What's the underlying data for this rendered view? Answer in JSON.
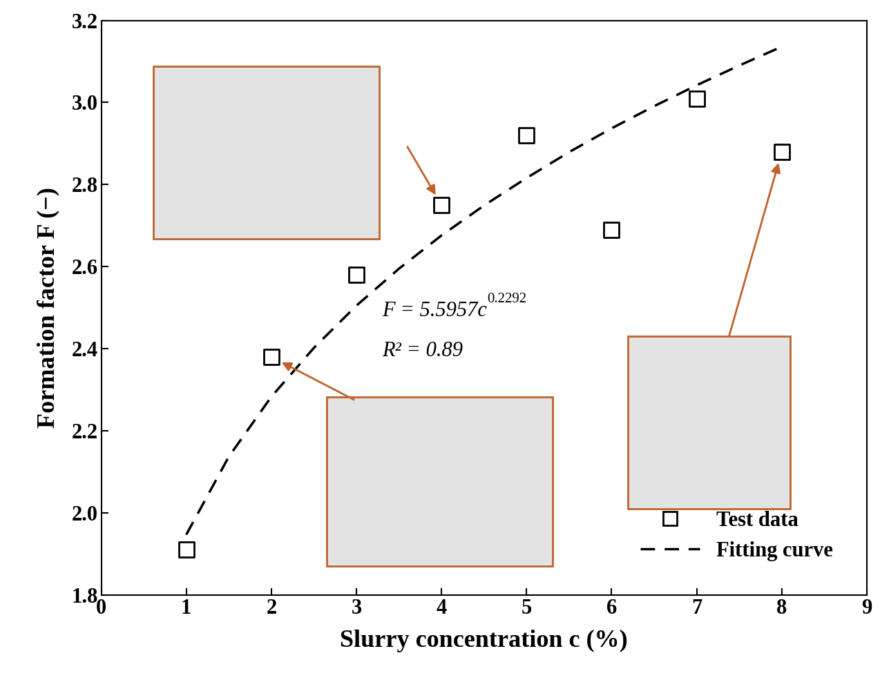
{
  "chart_data": {
    "type": "scatter",
    "x_label": "Slurry concentration c (%)",
    "y_label": "Formation factor F (−)",
    "xlim": [
      0,
      9
    ],
    "xticks": [
      0,
      1,
      2,
      3,
      4,
      5,
      6,
      7,
      8,
      9
    ],
    "ylim": [
      1.8,
      3.2
    ],
    "yticks": [
      {
        "value": 1.8,
        "label": "1.8"
      },
      {
        "value": 2.0,
        "label": "2.0"
      },
      {
        "value": 2.2,
        "label": "2.2"
      },
      {
        "value": 2.4,
        "label": "2.4"
      },
      {
        "value": 2.6,
        "label": "2.6"
      },
      {
        "value": 2.8,
        "label": "2.8"
      },
      {
        "value": 3.0,
        "label": "3.0"
      },
      {
        "value": 3.2,
        "label": "3.2"
      }
    ],
    "legend": "lower right",
    "equation": "F = 5.5957c",
    "equation_exponent": "0.2292",
    "r_squared": "R² = 0.89",
    "series": [
      {
        "name": "Test data",
        "type": "scatter",
        "color": "#000000",
        "marker": "square",
        "x": [
          1,
          2,
          3,
          4,
          5,
          6,
          7,
          8
        ],
        "values": [
          1.91,
          2.38,
          2.58,
          2.75,
          2.92,
          2.69,
          3.01,
          2.88
        ]
      },
      {
        "name": "Fitting curve",
        "type": "line",
        "color": "#000000",
        "line_style": "dashed",
        "x": [
          1,
          1.5,
          2,
          2.5,
          3,
          3.5,
          4,
          4.5,
          5,
          5.5,
          6,
          6.5,
          7,
          7.5,
          8
        ],
        "values": [
          1.947,
          2.137,
          2.283,
          2.402,
          2.505,
          2.595,
          2.676,
          2.749,
          2.816,
          2.879,
          2.937,
          2.991,
          3.042,
          3.09,
          3.136
        ]
      }
    ]
  }
}
